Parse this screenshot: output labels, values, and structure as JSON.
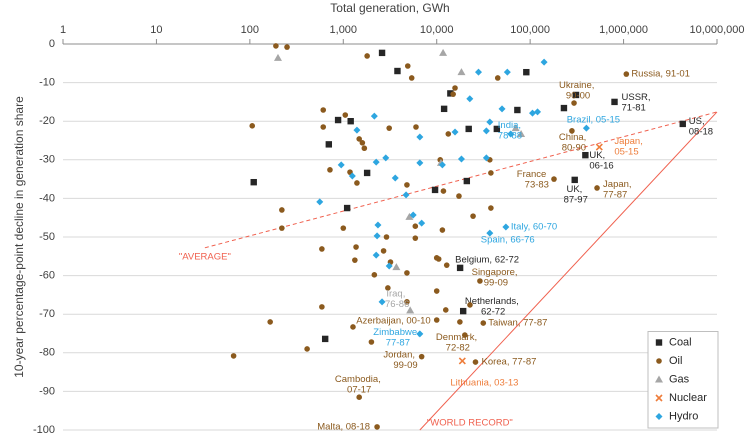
{
  "chart_data": {
    "type": "scatter",
    "x_label": "Total generation, GWh",
    "y_label": "10-year percentage-point decline in generation share",
    "xscale": "log",
    "xlim": [
      1,
      10000000
    ],
    "xticks": [
      1,
      10,
      100,
      {
        "value": 1000,
        "label": "1,000"
      },
      {
        "value": 10000,
        "label": "10,000"
      },
      {
        "value": 100000,
        "label": "100,000"
      },
      {
        "value": 1000000,
        "label": "1,000,000"
      },
      {
        "value": 10000000,
        "label": "10,000,000"
      }
    ],
    "ylim": [
      -100,
      0
    ],
    "yticks": [
      0,
      -10,
      -20,
      -30,
      -40,
      -50,
      -60,
      -70,
      -80,
      -90,
      -100
    ],
    "grid": true,
    "legend": "lower right",
    "series": [
      {
        "name": "Coal",
        "color": "#262626",
        "marker": "square",
        "x": [
          800000,
          4300000,
          390000,
          300000,
          17800,
          19200,
          2600,
          3800,
          91000,
          14000,
          310000,
          12000,
          73000,
          880,
          1200,
          230000,
          22000,
          44000,
          1800,
          9600,
          110,
          1100,
          21000,
          640,
          700
        ],
        "values": [
          -15,
          -20.7,
          -28.8,
          -35.2,
          -58,
          -69.2,
          -2.3,
          -7,
          -7.3,
          -12.8,
          -13.2,
          -16.8,
          -17.1,
          -19.7,
          -20,
          -16.6,
          -22,
          -22,
          -33.4,
          -37.8,
          -35.8,
          -42.5,
          -35.5,
          -76.4,
          -26
        ],
        "labels": [
          "USSR, 71-81",
          "US, 08-18",
          "UK, 06-16",
          "UK, 87-97",
          "Belgium, 62-72",
          "Netherlands, 62-72",
          null,
          null,
          null,
          null,
          null,
          null,
          null,
          null,
          null,
          null,
          null,
          null,
          null,
          null,
          null,
          null,
          null,
          null,
          null
        ]
      },
      {
        "name": "Oil",
        "color": "#8b5a1e",
        "marker": "circle",
        "x": [
          1070000,
          295000,
          280000,
          180000,
          520000,
          29000,
          10000,
          31500,
          20000,
          6900,
          26000,
          1480,
          2300,
          190,
          250,
          1800,
          4900,
          5400,
          15700,
          15000,
          45000,
          106,
          610,
          610,
          1050,
          1480,
          1600,
          1680,
          3100,
          6000,
          13300,
          10900,
          37000,
          38000,
          11800,
          17300,
          24500,
          38000,
          1180,
          720,
          1400,
          4800,
          220,
          220,
          1000,
          590,
          1370,
          2700,
          3200,
          1330,
          2150,
          3000,
          10000,
          10500,
          12800,
          4800,
          2900,
          5900,
          590,
          1270,
          4800,
          10000,
          22700,
          12500,
          17700,
          165,
          410,
          67,
          2000,
          5900,
          11500
        ],
        "values": [
          -7.8,
          -15.3,
          -22.5,
          -35,
          -37.3,
          -61.4,
          -71.5,
          -72.3,
          -75.4,
          -81,
          -82.4,
          -91.5,
          -99.2,
          -0.5,
          -0.8,
          -3.1,
          -5.7,
          -8.8,
          -11.4,
          -13,
          -8.8,
          -21.2,
          -17.1,
          -21.5,
          -18.4,
          -24.6,
          -25.6,
          -27,
          -21.8,
          -21.5,
          -23.3,
          -30,
          -30,
          -33.4,
          -38.1,
          -39.4,
          -44.6,
          -42.5,
          -33.2,
          -32.6,
          -36,
          -36.5,
          -43,
          -47.7,
          -47.7,
          -53.1,
          -52.6,
          -53.6,
          -56.5,
          -56,
          -59.8,
          -63.2,
          -55.4,
          -55.7,
          -57.3,
          -59.3,
          -50,
          -50.3,
          -68.1,
          -73.3,
          -66.8,
          -64,
          -67.6,
          -68.9,
          -72,
          -72,
          -79,
          -80.8,
          -77.2,
          -47.2,
          -48.2
        ],
        "labels": [
          "Russia, 91-01",
          "Ukraine, 90-00",
          "China, 80-90",
          "France 73-83",
          "Japan, 77-87",
          "Singapore, 99-09",
          "Azerbaijan, 00-10",
          "Taiwan, 77-87",
          "Denmark, 72-82",
          "Jordan, 99-09",
          "Korea, 77-87",
          "Cambodia, 07-17",
          "Malta, 08-18",
          null,
          null,
          null,
          null,
          null,
          null,
          null,
          null,
          null,
          null,
          null,
          null,
          null,
          null,
          null,
          null,
          null,
          null,
          null,
          null,
          null,
          null,
          null,
          null,
          null,
          null,
          null,
          null,
          null,
          null,
          null,
          null,
          null,
          null,
          null,
          null,
          null,
          null,
          null,
          null,
          null,
          null,
          null,
          null,
          null,
          null,
          null,
          null,
          null,
          null,
          null,
          null,
          null,
          null,
          null,
          null,
          null,
          null
        ]
      },
      {
        "name": "Gas",
        "color": "#a6a6a6",
        "marker": "triangle",
        "x": [
          5200,
          200,
          11700,
          18400,
          5100,
          3700,
          11100,
          70000,
          80000
        ],
        "values": [
          -69,
          -3.6,
          -2.3,
          -7.3,
          -44.8,
          -57.8,
          -30.8,
          -21.8,
          -23.3
        ],
        "labels": [
          "Iraq, 76-86",
          null,
          null,
          null,
          null,
          null,
          null,
          null,
          null
        ]
      },
      {
        "name": "Nuclear",
        "color": "#ee7d3b",
        "marker": "x",
        "x": [
          550000,
          18800
        ],
        "values": [
          -26.7,
          -82.1
        ],
        "labels": [
          "Japan, 05-15",
          "Lithuania, 03-13"
        ]
      },
      {
        "name": "Hydro",
        "color": "#2ea6e0",
        "marker": "diamond",
        "x": [
          37000,
          400000,
          55000,
          37000,
          6600,
          141000,
          57000,
          28000,
          22600,
          50000,
          106000,
          120000,
          2150,
          1400,
          6600,
          15700,
          34000,
          62000,
          34000,
          18400,
          11500,
          6600,
          2850,
          950,
          1250,
          3600,
          2250,
          4700,
          6900,
          5600,
          2350,
          2300,
          2250,
          3100,
          2600,
          560
        ],
        "values": [
          -20.2,
          -21.8,
          -47.4,
          -49,
          -75.1,
          -4.7,
          -7.3,
          -7.3,
          -14.2,
          -16.8,
          -17.9,
          -17.6,
          -18.7,
          -22.3,
          -24.1,
          -22.8,
          -22.5,
          -23.3,
          -29.5,
          -29.8,
          -31.3,
          -30.8,
          -29.5,
          -31.3,
          -34.2,
          -34.7,
          -30.6,
          -39.1,
          -46.4,
          -44.3,
          -46.9,
          -49.7,
          -54.7,
          -57.5,
          -66.8,
          -40.9
        ],
        "labels": [
          "India, 78-88",
          "Brazil, 05-15",
          "Italy, 60-70",
          "Spain, 66-76",
          "Zimbabwe, 77-87",
          null,
          null,
          null,
          null,
          null,
          null,
          null,
          null,
          null,
          null,
          null,
          null,
          null,
          null,
          null,
          null,
          null,
          null,
          null,
          null,
          null,
          null,
          null,
          null,
          null,
          null,
          null,
          null,
          null,
          null,
          null
        ]
      }
    ],
    "reference_lines": [
      {
        "label": "\"AVERAGE\"",
        "color": "#f0614f",
        "dashed": true,
        "x": [
          33,
          10000000
        ],
        "values": [
          -52.8,
          -17.6
        ]
      },
      {
        "label": "\"WORLD RECORD\"",
        "color": "#f0614f",
        "dashed": false,
        "x": [
          6600,
          10000000
        ],
        "values": [
          -100,
          -17.6
        ]
      }
    ]
  }
}
